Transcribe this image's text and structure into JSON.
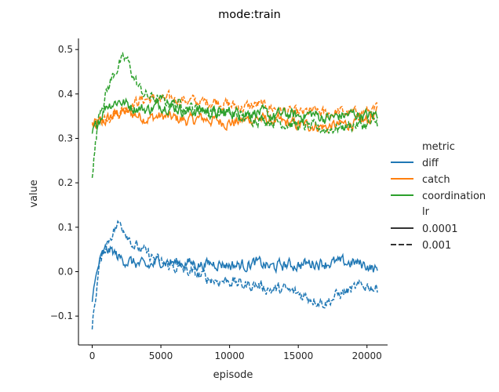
{
  "chart_data": {
    "type": "line",
    "title": "mode:train",
    "xlabel": "episode",
    "ylabel": "value",
    "xlim": [
      -1000,
      21500
    ],
    "ylim": [
      -0.165,
      0.525
    ],
    "xticks": [
      0,
      5000,
      10000,
      15000,
      20000
    ],
    "yticks": [
      -0.1,
      0.0,
      0.1,
      0.2,
      0.3,
      0.4,
      0.5
    ],
    "xtick_labels": [
      "0",
      "5000",
      "10000",
      "15000",
      "20000"
    ],
    "ytick_labels": [
      "−0.1",
      "0.0",
      "0.1",
      "0.2",
      "0.3",
      "0.4",
      "0.5"
    ],
    "grid": false,
    "legend": {
      "placement": "right",
      "hue_title": "metric",
      "style_title": "lr",
      "hue_entries": [
        "diff",
        "catch",
        "coordination"
      ],
      "style_entries": [
        "0.0001",
        "0.001"
      ]
    },
    "colors": {
      "diff": "#1f77b4",
      "catch": "#ff7f0e",
      "coordination": "#2ca02c"
    },
    "series": [
      {
        "name": "catch",
        "lr": "0.0001",
        "dash": "solid",
        "x": [
          0,
          1000,
          2000,
          3000,
          4000,
          5000,
          6000,
          7000,
          8000,
          9000,
          10000,
          11000,
          12000,
          13000,
          14000,
          15000,
          16000,
          17000,
          18000,
          19000,
          20000,
          20800
        ],
        "y": [
          0.33,
          0.34,
          0.36,
          0.355,
          0.345,
          0.35,
          0.345,
          0.34,
          0.345,
          0.34,
          0.335,
          0.34,
          0.345,
          0.34,
          0.335,
          0.33,
          0.33,
          0.325,
          0.33,
          0.335,
          0.34,
          0.36
        ]
      },
      {
        "name": "catch",
        "lr": "0.001",
        "dash": "dashed",
        "x": [
          0,
          1000,
          2000,
          3000,
          4000,
          5000,
          6000,
          7000,
          8000,
          9000,
          10000,
          11000,
          12000,
          13000,
          14000,
          15000,
          16000,
          17000,
          18000,
          19000,
          20000,
          20800
        ],
        "y": [
          0.33,
          0.35,
          0.36,
          0.38,
          0.39,
          0.385,
          0.39,
          0.385,
          0.38,
          0.385,
          0.375,
          0.37,
          0.375,
          0.37,
          0.36,
          0.355,
          0.36,
          0.355,
          0.36,
          0.355,
          0.36,
          0.365
        ]
      },
      {
        "name": "coordination",
        "lr": "0.0001",
        "dash": "solid",
        "x": [
          0,
          1000,
          2000,
          3000,
          4000,
          5000,
          6000,
          7000,
          8000,
          9000,
          10000,
          11000,
          12000,
          13000,
          14000,
          15000,
          16000,
          17000,
          18000,
          19000,
          20000,
          20800
        ],
        "y": [
          0.31,
          0.375,
          0.385,
          0.37,
          0.365,
          0.375,
          0.37,
          0.36,
          0.365,
          0.355,
          0.36,
          0.355,
          0.36,
          0.35,
          0.355,
          0.35,
          0.355,
          0.345,
          0.35,
          0.355,
          0.35,
          0.355
        ]
      },
      {
        "name": "coordination",
        "lr": "0.001",
        "dash": "dashed",
        "x": [
          0,
          500,
          1000,
          1500,
          2000,
          2500,
          3000,
          3500,
          4000,
          5000,
          6000,
          7000,
          8000,
          9000,
          10000,
          11000,
          12000,
          13000,
          14000,
          15000,
          16000,
          17000,
          18000,
          19000,
          20000,
          20800
        ],
        "y": [
          0.22,
          0.36,
          0.4,
          0.44,
          0.47,
          0.48,
          0.44,
          0.41,
          0.395,
          0.385,
          0.38,
          0.37,
          0.365,
          0.36,
          0.355,
          0.35,
          0.345,
          0.34,
          0.335,
          0.33,
          0.325,
          0.32,
          0.325,
          0.33,
          0.33,
          0.335
        ]
      },
      {
        "name": "diff",
        "lr": "0.0001",
        "dash": "solid",
        "x": [
          0,
          500,
          1000,
          1500,
          2000,
          3000,
          4000,
          5000,
          6000,
          7000,
          8000,
          9000,
          10000,
          11000,
          12000,
          13000,
          14000,
          15000,
          16000,
          17000,
          18000,
          19000,
          20000,
          20800
        ],
        "y": [
          -0.06,
          0.02,
          0.05,
          0.045,
          0.03,
          0.02,
          0.01,
          0.025,
          0.02,
          0.02,
          0.015,
          0.02,
          0.015,
          0.015,
          0.02,
          0.01,
          0.015,
          0.015,
          0.02,
          0.02,
          0.02,
          0.02,
          0.015,
          0.0
        ]
      },
      {
        "name": "diff",
        "lr": "0.001",
        "dash": "dashed",
        "x": [
          0,
          500,
          1000,
          1500,
          2000,
          2500,
          3000,
          3500,
          4000,
          5000,
          6000,
          7000,
          8000,
          9000,
          10000,
          11000,
          12000,
          13000,
          14000,
          15000,
          16000,
          17000,
          18000,
          19000,
          20000,
          20800
        ],
        "y": [
          -0.12,
          0.01,
          0.06,
          0.09,
          0.11,
          0.09,
          0.06,
          0.05,
          0.04,
          0.02,
          0.01,
          0.0,
          -0.01,
          -0.02,
          -0.02,
          -0.03,
          -0.03,
          -0.04,
          -0.04,
          -0.05,
          -0.06,
          -0.07,
          -0.05,
          -0.04,
          -0.03,
          -0.04
        ]
      }
    ]
  }
}
